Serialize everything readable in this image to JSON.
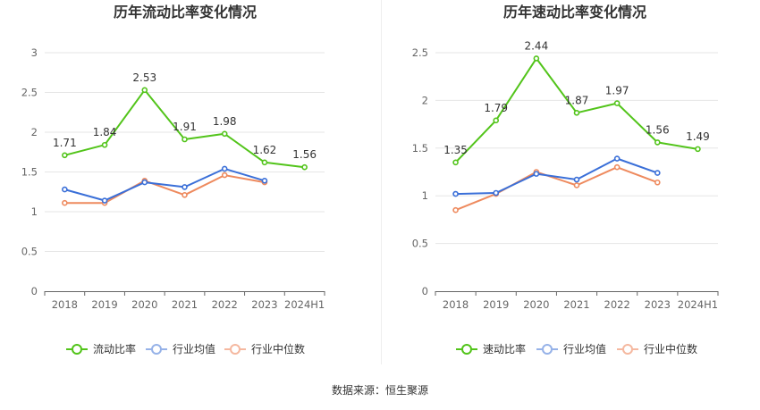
{
  "source_label": "数据来源：恒生聚源",
  "colors": {
    "main": "#52c41a",
    "avg": "#3a6fd8",
    "median": "#ee8a5e",
    "legend_avg": "#96b2e8",
    "legend_median": "#f5b8a0",
    "grid": "#e6e6e6",
    "axis": "#666666"
  },
  "chart_data": [
    {
      "type": "line",
      "title": "历年流动比率变化情况",
      "categories": [
        "2018",
        "2019",
        "2020",
        "2021",
        "2022",
        "2023",
        "2024H1"
      ],
      "ylim": [
        0,
        3
      ],
      "yticks": [
        0,
        0.5,
        1,
        1.5,
        2,
        2.5,
        3
      ],
      "ytick_labels": [
        "0",
        "0.5",
        "1",
        "1.5",
        "2",
        "2.5",
        "3"
      ],
      "legend_position": "bottom",
      "series": [
        {
          "name": "流动比率",
          "role": "main",
          "values": [
            1.71,
            1.84,
            2.53,
            1.91,
            1.98,
            1.62,
            1.56
          ],
          "labels": [
            "1.71",
            "1.84",
            "2.53",
            "1.91",
            "1.98",
            "1.62",
            "1.56"
          ]
        },
        {
          "name": "行业均值",
          "role": "avg",
          "values": [
            1.28,
            1.14,
            1.37,
            1.31,
            1.54,
            1.39,
            null
          ]
        },
        {
          "name": "行业中位数",
          "role": "median",
          "values": [
            1.11,
            1.11,
            1.39,
            1.21,
            1.46,
            1.37,
            null
          ]
        }
      ]
    },
    {
      "type": "line",
      "title": "历年速动比率变化情况",
      "categories": [
        "2018",
        "2019",
        "2020",
        "2021",
        "2022",
        "2023",
        "2024H1"
      ],
      "ylim": [
        0,
        2.5
      ],
      "yticks": [
        0,
        0.5,
        1,
        1.5,
        2,
        2.5
      ],
      "ytick_labels": [
        "0",
        "0.5",
        "1",
        "1.5",
        "2",
        "2.5"
      ],
      "legend_position": "bottom",
      "series": [
        {
          "name": "速动比率",
          "role": "main",
          "values": [
            1.35,
            1.79,
            2.44,
            1.87,
            1.97,
            1.56,
            1.49
          ],
          "labels": [
            "1.35",
            "1.79",
            "2.44",
            "1.87",
            "1.97",
            "1.56",
            "1.49"
          ]
        },
        {
          "name": "行业均值",
          "role": "avg",
          "values": [
            1.02,
            1.03,
            1.23,
            1.17,
            1.39,
            1.24,
            null
          ]
        },
        {
          "name": "行业中位数",
          "role": "median",
          "values": [
            0.85,
            1.02,
            1.25,
            1.11,
            1.3,
            1.14,
            null
          ]
        }
      ]
    }
  ]
}
